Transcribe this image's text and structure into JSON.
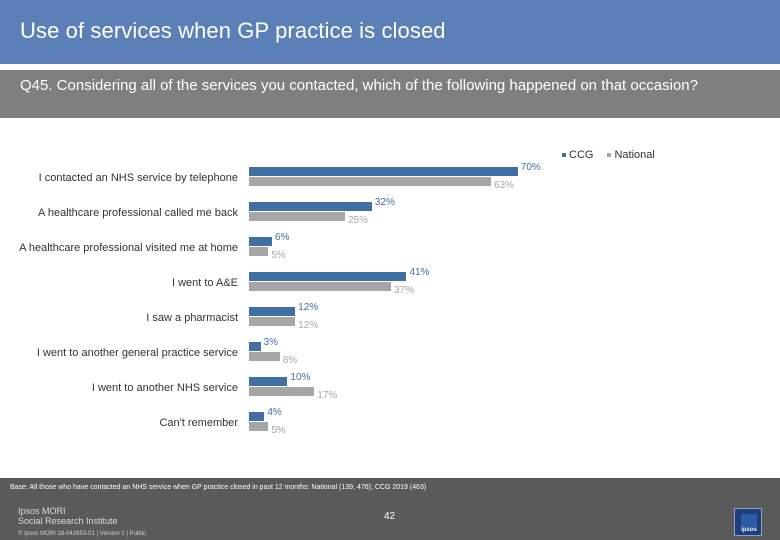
{
  "title": "Use of services when GP practice is closed",
  "question": "Q45. Considering all of the services you contacted, which of the following happened on that occasion?",
  "colors": {
    "ccg": "#3f6fa3",
    "national": "#a6a6a6",
    "header": "#5b80b8",
    "question_bg": "#7f7f7f",
    "footer": "#5a5a5a"
  },
  "chart_data": {
    "type": "bar",
    "orientation": "horizontal",
    "categories": [
      "I contacted an NHS service by telephone",
      "A healthcare professional called me back",
      "A healthcare professional visited me at home",
      "I went to A&E",
      "I saw a pharmacist",
      "I went to another general practice service",
      "I  went to another NHS service",
      "Can't remember"
    ],
    "series": [
      {
        "name": "CCG",
        "values": [
          70,
          32,
          6,
          41,
          12,
          3,
          10,
          4
        ]
      },
      {
        "name": "National",
        "values": [
          63,
          25,
          5,
          37,
          12,
          8,
          17,
          5
        ]
      }
    ],
    "value_labels": {
      "CCG": [
        "70%",
        "32%",
        "6%",
        "41%",
        "12%",
        "3%",
        "10%",
        "4%"
      ],
      "National": [
        "63%",
        "25%",
        "5%",
        "37%",
        "12%",
        "8%",
        "17%",
        "5%"
      ]
    },
    "legend": [
      "CCG",
      "National"
    ],
    "legend_position": "top-right",
    "xlim": [
      0,
      100
    ],
    "grid": false
  },
  "footer": {
    "base": "Base: All those who have contacted an NHS service when GP practice closed in past 12 months: National (139, 476); CCG 2019 (463)",
    "logo_line1": "Ipsos MORI",
    "logo_line2": "Social Research Institute",
    "page_number": "42",
    "copyright": "© Ipsos MORI       18-042653-01 | Version 1 | Public",
    "badge_text": "ipsos"
  }
}
